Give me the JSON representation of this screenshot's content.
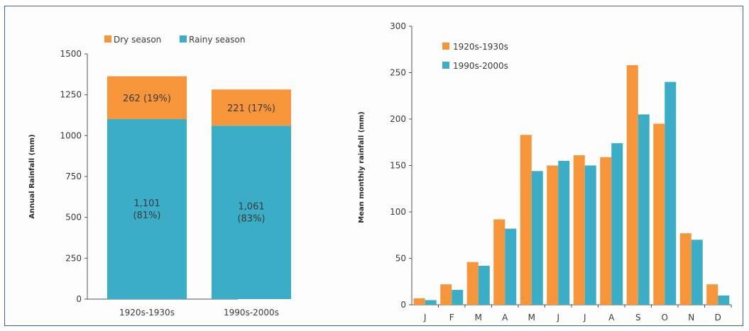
{
  "colors": {
    "dry": "#f7953a",
    "rainy": "#3badc6",
    "frame": "#3f5fa6"
  },
  "chart_data": [
    {
      "type": "bar",
      "stacked": true,
      "categories": [
        "1920s-1930s",
        "1990s-2000s"
      ],
      "series": [
        {
          "name": "Rainy season",
          "values": [
            1101,
            1061
          ],
          "labels": [
            [
              "1,101",
              "(81%)"
            ],
            [
              "1,061",
              "(83%)"
            ]
          ]
        },
        {
          "name": "Dry season",
          "values": [
            262,
            221
          ],
          "labels": [
            "262 (19%)",
            "221 (17%)"
          ]
        }
      ],
      "ylabel": "Annual Rainfall (mm)",
      "ylim": [
        0,
        1500
      ],
      "yticks": [
        0,
        250,
        500,
        750,
        1000,
        1250,
        1500
      ],
      "legend": "top"
    },
    {
      "type": "bar",
      "categories": [
        "J",
        "F",
        "M",
        "A",
        "M",
        "J",
        "J",
        "A",
        "S",
        "O",
        "N",
        "D"
      ],
      "series": [
        {
          "name": "1920s-1930s",
          "values": [
            7,
            22,
            46,
            92,
            183,
            150,
            161,
            159,
            258,
            195,
            77,
            22
          ]
        },
        {
          "name": "1990s-2000s",
          "values": [
            5,
            16,
            42,
            82,
            144,
            155,
            150,
            174,
            205,
            240,
            70,
            10
          ]
        }
      ],
      "ylabel": "Mean monthly rainfall (mm)",
      "ylim": [
        0,
        300
      ],
      "yticks": [
        0,
        50,
        100,
        150,
        200,
        250,
        300
      ],
      "legend": "top-left"
    }
  ]
}
